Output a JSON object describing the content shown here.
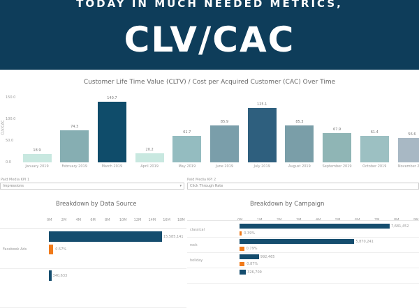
{
  "header": {
    "subtitle": "TODAY IN MUCH NEEDED METRICS,",
    "title": "CLV/CAC",
    "bg": "#0e3d5a"
  },
  "kpi1": {
    "label": "Paid Media KPI 1",
    "value": "Impressions"
  },
  "kpi2": {
    "label": "Paid Media KPI 2",
    "value": "Click Through Rate"
  },
  "chart_data": [
    {
      "type": "bar",
      "title": "Customer Life Time Value (CLTV) / Cost per Acquired Customer (CAC) Over Time",
      "ylabel": "CLV/CAC",
      "ylim": [
        0,
        150
      ],
      "yticks": [
        "150.0",
        "100.0",
        "50.0",
        "0.0"
      ],
      "categories": [
        "January 2019",
        "February 2019",
        "March 2019",
        "April 2019",
        "May 2019",
        "June 2019",
        "July 2019",
        "August 2019",
        "September 2019",
        "October 2019",
        "November 2019"
      ],
      "values": [
        18.9,
        74.3,
        140.7,
        20.2,
        61.7,
        85.9,
        125.1,
        85.3,
        67.9,
        61.4,
        56.6
      ],
      "labels": [
        "18.9",
        "74.3",
        "140.7",
        "20.2",
        "61.7",
        "85.9",
        "125.1",
        "85.3",
        "67.9",
        "61.4",
        "56.6"
      ],
      "colors": [
        "#c8e8e0",
        "#86aeb2",
        "#0f4c6a",
        "#c8e8e0",
        "#94bcc0",
        "#7a9eaa",
        "#2e5f7e",
        "#7a9ea8",
        "#8fb5b5",
        "#9cc0c2",
        "#a8b8c4"
      ]
    },
    {
      "type": "bar",
      "orientation": "horizontal",
      "title": "Breakdown by Data Source",
      "xticks": [
        "0M",
        "2M",
        "4M",
        "6M",
        "8M",
        "10M",
        "12M",
        "14M",
        "16M",
        "18M"
      ],
      "xlim": [
        0,
        18000000
      ],
      "rows": [
        {
          "category": "Facebook Ads",
          "impressions": 15585141,
          "impressions_label": "15,585,141",
          "ctr": 0.57,
          "ctr_label": "0.57%"
        },
        {
          "category": "",
          "impressions": 340633,
          "impressions_label": "340,633"
        }
      ]
    },
    {
      "type": "bar",
      "orientation": "horizontal",
      "title": "Breakdown by Campaign",
      "xticks": [
        "0M",
        "1M",
        "2M",
        "3M",
        "4M",
        "5M",
        "6M",
        "7M",
        "8M",
        "9M"
      ],
      "xlim": [
        0,
        9000000
      ],
      "rows": [
        {
          "category": "classical",
          "impressions": 7681452,
          "impressions_label": "7,681,452",
          "ctr": 0.39,
          "ctr_label": "0.39%"
        },
        {
          "category": "rock",
          "impressions": 5870241,
          "impressions_label": "5,870,241",
          "ctr": 0.79,
          "ctr_label": "0.79%"
        },
        {
          "category": "holiday",
          "impressions": 992465,
          "impressions_label": "992,465",
          "ctr": 0.87,
          "ctr_label": "0.87%"
        },
        {
          "category": "",
          "impressions": 326709,
          "impressions_label": "326,709"
        }
      ]
    }
  ],
  "colors": {
    "impressions": "#154d6e",
    "ctr": "#f07a1a"
  }
}
